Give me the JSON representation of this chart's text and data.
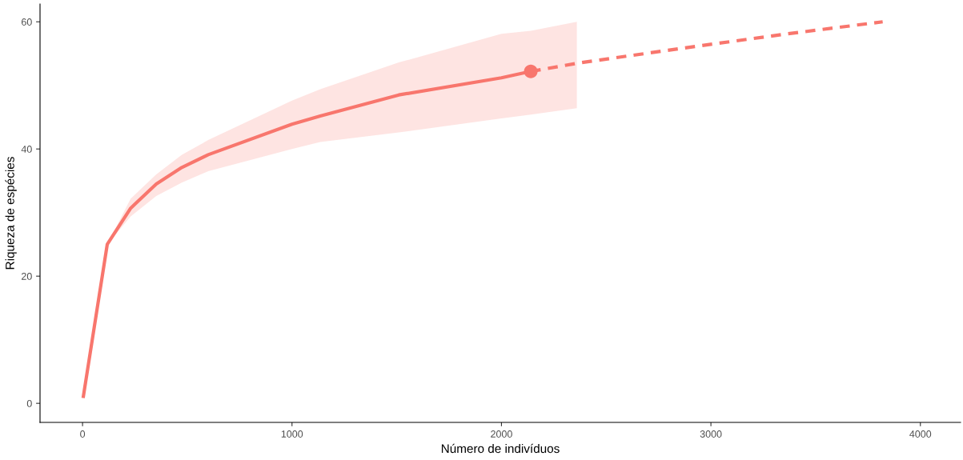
{
  "chart_data": {
    "type": "line",
    "xlabel": "Número de indivíduos",
    "ylabel": "Riqueza de espécies",
    "xlim": [
      -203,
      4192
    ],
    "ylim": [
      -3,
      62.8
    ],
    "xticks": [
      0,
      1000,
      2000,
      3000,
      4000
    ],
    "yticks": [
      0,
      20,
      40,
      60
    ],
    "grid": false,
    "legend": false,
    "series": [
      {
        "line_style": "solid",
        "color": "#f8766d",
        "x": [
          4,
          118,
          230,
          352,
          474,
          600,
          1000,
          1135,
          1510,
          2000,
          2140,
          2360
        ],
        "values": [
          1.1,
          25.0,
          30.7,
          34.5,
          37.1,
          39.1,
          43.9,
          45.2,
          48.5,
          51.2,
          52.2,
          null
        ],
        "lower": [
          1.1,
          25.0,
          29.4,
          32.6,
          34.7,
          36.5,
          40.0,
          41.1,
          42.6,
          44.8,
          45.4,
          46.4
        ],
        "upper": [
          1.1,
          25.0,
          32.2,
          36.0,
          39.1,
          41.4,
          47.6,
          49.4,
          53.6,
          58.1,
          58.6,
          60.0
        ]
      },
      {
        "line_style": "dashed",
        "color": "#f8766d",
        "x": [
          2140,
          2365,
          2854,
          3363,
          3820
        ],
        "values": [
          52.2,
          53.5,
          55.8,
          58.1,
          60.0
        ]
      },
      {
        "type": "scatter",
        "marker": "circle",
        "color": "#f8766d",
        "x": [
          2140
        ],
        "values": [
          52.2
        ]
      }
    ]
  }
}
